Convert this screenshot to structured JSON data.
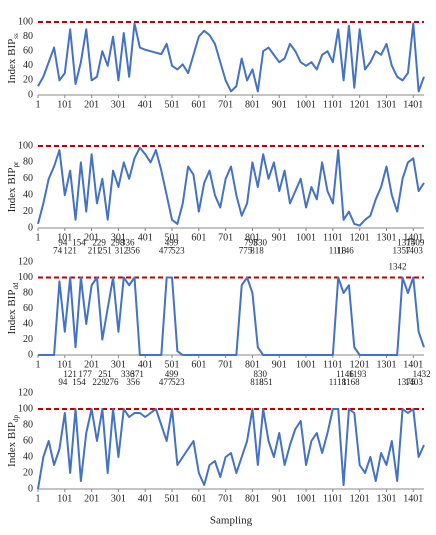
{
  "chart_data": [
    {
      "type": "line",
      "ylabel": "Index BIP",
      "ylabel_subscript": "ss",
      "x": [
        1,
        21,
        41,
        61,
        81,
        101,
        121,
        141,
        161,
        181,
        201,
        221,
        241,
        261,
        281,
        301,
        321,
        341,
        361,
        381,
        401,
        421,
        441,
        461,
        481,
        501,
        521,
        541,
        561,
        581,
        601,
        621,
        641,
        661,
        681,
        701,
        721,
        741,
        761,
        781,
        801,
        821,
        841,
        861,
        881,
        901,
        921,
        941,
        961,
        981,
        1001,
        1021,
        1041,
        1061,
        1081,
        1101,
        1121,
        1141,
        1161,
        1181,
        1201,
        1221,
        1241,
        1261,
        1281,
        1301,
        1321,
        1341,
        1361,
        1381,
        1401,
        1421,
        1441
      ],
      "series": [
        {
          "color": "#4472c4",
          "values": [
            12,
            25,
            45,
            65,
            20,
            30,
            90,
            15,
            45,
            90,
            20,
            25,
            60,
            40,
            80,
            20,
            85,
            25,
            98,
            65,
            62,
            60,
            58,
            56,
            70,
            40,
            35,
            42,
            30,
            55,
            80,
            88,
            82,
            70,
            45,
            20,
            5,
            12,
            50,
            20,
            35,
            5,
            60,
            65,
            55,
            45,
            50,
            70,
            60,
            45,
            40,
            45,
            35,
            55,
            60,
            45,
            90,
            20,
            95,
            10,
            90,
            35,
            45,
            60,
            55,
            70,
            40,
            25,
            20,
            30,
            98,
            5,
            25
          ]
        }
      ],
      "threshold": 100,
      "threshold_color": "#c00000",
      "xlim": [
        1,
        1441
      ],
      "xticks": [
        1,
        101,
        201,
        301,
        401,
        501,
        601,
        701,
        801,
        901,
        1001,
        1101,
        1201,
        1301,
        1401
      ],
      "ylim": [
        0,
        100
      ],
      "yticks": [
        0,
        20,
        40,
        60,
        80,
        100
      ]
    },
    {
      "type": "line",
      "ylabel": "Index BIP",
      "ylabel_subscript": "pr",
      "x": [
        1,
        21,
        41,
        61,
        81,
        101,
        121,
        141,
        161,
        181,
        201,
        221,
        241,
        261,
        281,
        301,
        321,
        341,
        361,
        381,
        401,
        421,
        441,
        461,
        481,
        501,
        521,
        541,
        561,
        581,
        601,
        621,
        641,
        661,
        681,
        701,
        721,
        741,
        761,
        781,
        801,
        821,
        841,
        861,
        881,
        901,
        921,
        941,
        961,
        981,
        1001,
        1021,
        1041,
        1061,
        1081,
        1101,
        1121,
        1141,
        1161,
        1181,
        1201,
        1221,
        1241,
        1261,
        1281,
        1301,
        1321,
        1341,
        1361,
        1381,
        1401,
        1421,
        1441
      ],
      "series": [
        {
          "color": "#4472c4",
          "values": [
            5,
            30,
            60,
            75,
            95,
            40,
            70,
            10,
            80,
            20,
            90,
            30,
            60,
            10,
            70,
            50,
            80,
            60,
            85,
            98,
            90,
            80,
            95,
            70,
            40,
            10,
            5,
            30,
            75,
            65,
            20,
            55,
            70,
            40,
            25,
            60,
            75,
            40,
            15,
            30,
            80,
            50,
            90,
            60,
            80,
            45,
            70,
            30,
            45,
            60,
            25,
            50,
            35,
            80,
            45,
            30,
            95,
            10,
            20,
            5,
            3,
            10,
            15,
            35,
            50,
            75,
            40,
            20,
            60,
            80,
            85,
            45,
            55
          ]
        }
      ],
      "threshold": 100,
      "threshold_color": "#c00000",
      "xlim": [
        1,
        1441
      ],
      "xticks": [
        1,
        101,
        201,
        301,
        401,
        501,
        601,
        701,
        801,
        901,
        1001,
        1101,
        1201,
        1301,
        1401
      ],
      "ylim": [
        0,
        100
      ],
      "yticks": [
        0,
        20,
        40,
        60,
        80,
        100
      ]
    },
    {
      "type": "line",
      "ylabel": "Index BIP",
      "ylabel_subscript": "dd",
      "x": [
        1,
        21,
        41,
        61,
        81,
        101,
        121,
        141,
        161,
        181,
        201,
        221,
        241,
        261,
        281,
        301,
        321,
        341,
        361,
        381,
        401,
        421,
        441,
        461,
        481,
        501,
        521,
        541,
        561,
        581,
        601,
        621,
        641,
        661,
        681,
        701,
        721,
        741,
        761,
        781,
        801,
        821,
        841,
        861,
        881,
        901,
        921,
        941,
        961,
        981,
        1001,
        1021,
        1041,
        1061,
        1081,
        1101,
        1121,
        1141,
        1161,
        1181,
        1201,
        1221,
        1241,
        1261,
        1281,
        1301,
        1321,
        1341,
        1361,
        1381,
        1401,
        1421,
        1441
      ],
      "series": [
        {
          "color": "#4472c4",
          "values": [
            0,
            0,
            0,
            0,
            95,
            30,
            100,
            10,
            100,
            40,
            90,
            100,
            20,
            60,
            100,
            30,
            100,
            90,
            100,
            0,
            0,
            0,
            0,
            0,
            100,
            100,
            5,
            0,
            0,
            0,
            0,
            0,
            0,
            0,
            0,
            0,
            0,
            0,
            90,
            100,
            80,
            10,
            0,
            0,
            0,
            0,
            0,
            0,
            0,
            0,
            0,
            0,
            0,
            0,
            0,
            0,
            100,
            80,
            90,
            10,
            0,
            0,
            0,
            0,
            0,
            0,
            0,
            0,
            100,
            80,
            100,
            30,
            10
          ]
        }
      ],
      "threshold": 100,
      "threshold_color": "#c00000",
      "annotation_rows": [
        [
          94,
          154,
          229,
          298,
          336,
          499,
          795,
          830,
          1375,
          1409
        ],
        [
          74,
          121,
          211,
          251,
          312,
          356,
          477,
          523,
          775,
          818,
          1118,
          1146,
          1357,
          1403
        ],
        [
          1342
        ]
      ],
      "xlim": [
        1,
        1441
      ],
      "xticks": [
        1,
        101,
        201,
        301,
        401,
        501,
        601,
        701,
        801,
        901,
        1001,
        1101,
        1201,
        1301,
        1401
      ],
      "ylim": [
        0,
        120
      ],
      "yticks": [
        0,
        20,
        40,
        60,
        80,
        100,
        120
      ]
    },
    {
      "type": "line",
      "ylabel": "Index BIP",
      "ylabel_subscript": "dp",
      "xlabel": "Sampling",
      "x": [
        1,
        21,
        41,
        61,
        81,
        101,
        121,
        141,
        161,
        181,
        201,
        221,
        241,
        261,
        281,
        301,
        321,
        341,
        361,
        381,
        401,
        421,
        441,
        461,
        481,
        501,
        521,
        541,
        561,
        581,
        601,
        621,
        641,
        661,
        681,
        701,
        721,
        741,
        761,
        781,
        801,
        821,
        841,
        861,
        881,
        901,
        921,
        941,
        961,
        981,
        1001,
        1021,
        1041,
        1061,
        1081,
        1101,
        1121,
        1141,
        1161,
        1181,
        1201,
        1221,
        1241,
        1261,
        1281,
        1301,
        1321,
        1341,
        1361,
        1381,
        1401,
        1421,
        1441
      ],
      "series": [
        {
          "color": "#4472c4",
          "values": [
            0,
            40,
            60,
            30,
            50,
            95,
            20,
            100,
            10,
            70,
            100,
            60,
            100,
            20,
            100,
            40,
            100,
            90,
            95,
            95,
            90,
            95,
            100,
            80,
            60,
            100,
            30,
            40,
            50,
            60,
            20,
            5,
            30,
            35,
            15,
            40,
            45,
            20,
            40,
            60,
            100,
            30,
            100,
            60,
            40,
            70,
            30,
            55,
            75,
            85,
            30,
            60,
            70,
            45,
            70,
            100,
            100,
            5,
            100,
            95,
            30,
            20,
            40,
            10,
            45,
            30,
            60,
            10,
            100,
            95,
            100,
            40,
            55
          ]
        }
      ],
      "threshold": 100,
      "threshold_color": "#c00000",
      "annotation_rows": [
        [
          121,
          177,
          251,
          336,
          371,
          499,
          830,
          1146,
          1193,
          1432
        ],
        [
          94,
          154,
          229,
          276,
          356,
          477,
          523,
          818,
          851,
          1118,
          1168,
          1375,
          1403
        ]
      ],
      "xlim": [
        1,
        1441
      ],
      "xticks": [
        1,
        101,
        201,
        301,
        401,
        501,
        601,
        701,
        801,
        901,
        1001,
        1101,
        1201,
        1301,
        1401
      ],
      "ylim": [
        0,
        120
      ],
      "yticks": [
        0,
        20,
        40,
        60,
        80,
        100,
        120
      ]
    }
  ]
}
